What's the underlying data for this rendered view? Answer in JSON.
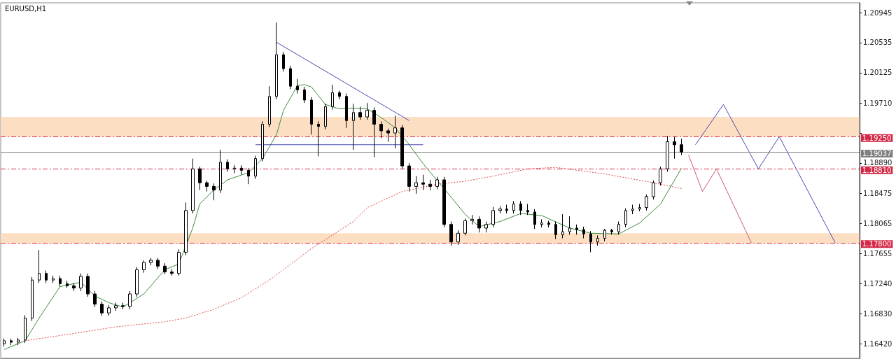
{
  "chart_data": {
    "type": "candlestick",
    "title": "EURUSD,H1",
    "color": "#000000",
    "tick_labels": "y",
    "grid": false,
    "marker": "none",
    "categories": [
      null,
      null,
      null,
      null,
      null,
      null,
      null,
      null,
      null,
      null,
      null,
      null,
      null,
      null,
      null,
      null,
      null,
      null,
      null,
      null,
      null,
      null,
      null,
      null,
      null,
      null,
      null,
      null,
      null,
      null,
      null,
      null,
      null,
      null,
      null,
      null,
      null,
      null,
      null,
      null,
      null,
      null,
      null,
      null,
      null,
      null,
      null,
      null,
      null,
      null,
      null,
      null,
      null,
      null,
      null,
      null,
      null,
      null,
      null,
      null,
      null,
      null,
      null,
      null,
      null,
      null,
      null,
      null,
      null,
      null,
      null,
      null,
      null,
      null,
      null,
      null,
      null,
      null,
      null,
      null,
      null,
      null,
      null,
      null,
      null,
      null,
      null,
      null,
      null,
      null,
      null,
      null,
      null,
      null,
      null,
      null,
      null,
      null,
      null,
      null,
      null,
      null,
      null,
      null,
      null,
      null,
      null,
      null,
      null,
      null,
      null,
      null,
      null,
      null,
      null,
      null,
      null,
      null,
      null,
      null,
      null,
      null,
      null
    ],
    "ylim": [
      1.1622,
      1.2108
    ],
    "yticks": [
      {
        "value": 1.1642,
        "label": "1.16420"
      },
      {
        "value": 1.1683,
        "label": "1.16830"
      },
      {
        "value": 1.1724,
        "label": "1.17240"
      },
      {
        "value": 1.17655,
        "label": "1.17655"
      },
      {
        "value": 1.18065,
        "label": "1.18065"
      },
      {
        "value": 1.18475,
        "label": "1.18475"
      },
      {
        "value": 1.1889,
        "label": "1.18890"
      },
      {
        "value": 1.193,
        "label": null
      },
      {
        "value": 1.1971,
        "label": "1.19710"
      },
      {
        "value": 1.20125,
        "label": "1.20125"
      },
      {
        "value": 1.20535,
        "label": "1.20535"
      },
      {
        "value": 1.20945,
        "label": "1.20945"
      }
    ],
    "ohlc": [
      [
        1.1642,
        1.1649,
        1.1638,
        1.1646
      ],
      [
        1.1646,
        1.1649,
        1.164,
        1.1644
      ],
      [
        1.1644,
        1.165,
        1.164,
        1.1647
      ],
      [
        1.1647,
        1.1681,
        1.1643,
        1.1677
      ],
      [
        1.1677,
        1.1733,
        1.1673,
        1.1729
      ],
      [
        1.1729,
        1.177,
        1.1725,
        1.1738
      ],
      [
        1.1738,
        1.1742,
        1.1725,
        1.1729
      ],
      [
        1.1729,
        1.1735,
        1.1725,
        1.1731
      ],
      [
        1.1731,
        1.1735,
        1.172,
        1.1724
      ],
      [
        1.1724,
        1.1728,
        1.1718,
        1.1721
      ],
      [
        1.1721,
        1.1725,
        1.1714,
        1.1718
      ],
      [
        1.1718,
        1.1738,
        1.1714,
        1.1734
      ],
      [
        1.1734,
        1.1738,
        1.1706,
        1.171
      ],
      [
        1.171,
        1.1714,
        1.1692,
        1.1696
      ],
      [
        1.1696,
        1.17,
        1.168,
        1.1684
      ],
      [
        1.1684,
        1.1695,
        1.168,
        1.1691
      ],
      [
        1.1691,
        1.1698,
        1.1687,
        1.1694
      ],
      [
        1.1694,
        1.1698,
        1.1689,
        1.1693
      ],
      [
        1.1693,
        1.1714,
        1.1689,
        1.171
      ],
      [
        1.171,
        1.1747,
        1.1706,
        1.1743
      ],
      [
        1.1743,
        1.1756,
        1.1739,
        1.1753
      ],
      [
        1.1753,
        1.1759,
        1.1749,
        1.1756
      ],
      [
        1.1756,
        1.1759,
        1.1744,
        1.1748
      ],
      [
        1.1748,
        1.1752,
        1.1737,
        1.174
      ],
      [
        1.174,
        1.1744,
        1.1735,
        1.1738
      ],
      [
        1.1738,
        1.1771,
        1.1735,
        1.1767
      ],
      [
        1.1767,
        1.1835,
        1.1763,
        1.1824
      ],
      [
        1.1824,
        1.1895,
        1.182,
        1.1881
      ],
      [
        1.1881,
        1.1884,
        1.1852,
        1.1862
      ],
      [
        1.1862,
        1.1865,
        1.185,
        1.1857
      ],
      [
        1.1857,
        1.1861,
        1.1838,
        1.1852
      ],
      [
        1.1852,
        1.1907,
        1.1848,
        1.189
      ],
      [
        1.189,
        1.1894,
        1.1877,
        1.1881
      ],
      [
        1.1881,
        1.1886,
        1.1875,
        1.1882
      ],
      [
        1.1882,
        1.1886,
        1.1873,
        1.1879
      ],
      [
        1.1879,
        1.1882,
        1.186,
        1.1871
      ],
      [
        1.1871,
        1.1899,
        1.1867,
        1.1895
      ],
      [
        1.1895,
        1.1946,
        1.1891,
        1.1942
      ],
      [
        1.1942,
        1.1994,
        1.1938,
        1.198
      ],
      [
        1.198,
        1.2081,
        1.1976,
        1.2037
      ],
      [
        1.2037,
        1.2041,
        1.2014,
        1.2018
      ],
      [
        1.2018,
        1.2022,
        1.199,
        1.1994
      ],
      [
        1.1994,
        1.2004,
        1.1984,
        1.1989
      ],
      [
        1.1989,
        1.1993,
        1.1971,
        1.1975
      ],
      [
        1.1975,
        1.1979,
        1.1928,
        1.1942
      ],
      [
        1.1942,
        1.1946,
        1.1898,
        1.1939
      ],
      [
        1.1939,
        1.197,
        1.1935,
        1.1966
      ],
      [
        1.1966,
        1.1996,
        1.1962,
        1.1985
      ],
      [
        1.1985,
        1.1988,
        1.1976,
        1.198
      ],
      [
        1.198,
        1.1984,
        1.1937,
        1.1947
      ],
      [
        1.1947,
        1.197,
        1.1907,
        1.1958
      ],
      [
        1.1958,
        1.1966,
        1.1948,
        1.1952
      ],
      [
        1.1952,
        1.1971,
        1.1948,
        1.1961
      ],
      [
        1.1961,
        1.1965,
        1.1897,
        1.1942
      ],
      [
        1.1942,
        1.1946,
        1.1923,
        1.1933
      ],
      [
        1.1933,
        1.1936,
        1.1918,
        1.193
      ],
      [
        1.193,
        1.1954,
        1.1909,
        1.1937
      ],
      [
        1.1937,
        1.1941,
        1.1881,
        1.1885
      ],
      [
        1.1885,
        1.1889,
        1.185,
        1.1857
      ],
      [
        1.1857,
        1.1871,
        1.1847,
        1.1862
      ],
      [
        1.1862,
        1.1873,
        1.1852,
        1.186
      ],
      [
        1.186,
        1.1866,
        1.1852,
        1.1857
      ],
      [
        1.1857,
        1.187,
        1.1853,
        1.1866
      ],
      [
        1.1866,
        1.187,
        1.1801,
        1.1805
      ],
      [
        1.1805,
        1.1809,
        1.1776,
        1.1781
      ],
      [
        1.1781,
        1.1797,
        1.1777,
        1.1793
      ],
      [
        1.1793,
        1.1813,
        1.179,
        1.181
      ],
      [
        1.181,
        1.1818,
        1.1805,
        1.1812
      ],
      [
        1.1812,
        1.1816,
        1.1794,
        1.18
      ],
      [
        1.18,
        1.1809,
        1.1794,
        1.1805
      ],
      [
        1.1805,
        1.1829,
        1.1801,
        1.1824
      ],
      [
        1.1824,
        1.183,
        1.182,
        1.1826
      ],
      [
        1.1826,
        1.1832,
        1.182,
        1.1824
      ],
      [
        1.1824,
        1.1837,
        1.182,
        1.1833
      ],
      [
        1.1833,
        1.1837,
        1.1818,
        1.1824
      ],
      [
        1.1824,
        1.1833,
        1.1818,
        1.1822
      ],
      [
        1.1822,
        1.1826,
        1.1799,
        1.1805
      ],
      [
        1.1805,
        1.1812,
        1.1801,
        1.1807
      ],
      [
        1.1807,
        1.181,
        1.1801,
        1.1805
      ],
      [
        1.1805,
        1.1809,
        1.1785,
        1.1791
      ],
      [
        1.1791,
        1.1819,
        1.1786,
        1.1795
      ],
      [
        1.1795,
        1.1816,
        1.1791,
        1.18
      ],
      [
        1.18,
        1.1805,
        1.1791,
        1.1798
      ],
      [
        1.1798,
        1.1802,
        1.1786,
        1.1792
      ],
      [
        1.1792,
        1.1796,
        1.1767,
        1.1781
      ],
      [
        1.1781,
        1.179,
        1.1776,
        1.1786
      ],
      [
        1.1786,
        1.1799,
        1.1782,
        1.1797
      ],
      [
        1.1797,
        1.1799,
        1.1791,
        1.1795
      ],
      [
        1.1795,
        1.1809,
        1.1791,
        1.1805
      ],
      [
        1.1805,
        1.1827,
        1.1801,
        1.1824
      ],
      [
        1.1824,
        1.1832,
        1.1819,
        1.1826
      ],
      [
        1.1826,
        1.1833,
        1.1823,
        1.1828
      ],
      [
        1.1828,
        1.1846,
        1.1824,
        1.1843
      ],
      [
        1.1843,
        1.1865,
        1.1839,
        1.1862
      ],
      [
        1.1862,
        1.1884,
        1.1858,
        1.1881
      ],
      [
        1.1881,
        1.1926,
        1.1877,
        1.1918
      ],
      [
        1.1918,
        1.1925,
        1.1895,
        1.1914
      ],
      [
        1.1914,
        1.1922,
        1.19,
        1.1904
      ],
      null,
      null,
      null,
      null,
      null,
      null,
      null,
      null,
      null,
      null,
      null,
      null,
      null,
      null,
      null,
      null,
      null,
      null,
      null,
      null,
      null,
      null,
      null,
      null,
      null
    ],
    "series": [
      {
        "type": "line",
        "color": "#3c8c3c",
        "line_style": "solid",
        "values": [
          1.1634,
          null,
          null,
          1.1646,
          null,
          1.1677,
          null,
          null,
          1.172,
          null,
          null,
          1.1726,
          null,
          1.1707,
          null,
          1.1698,
          null,
          1.1692,
          null,
          null,
          1.171,
          null,
          null,
          1.1743,
          null,
          1.1751,
          null,
          1.18,
          1.1833,
          null,
          1.1852,
          null,
          1.1866,
          null,
          null,
          1.1876,
          null,
          1.1895,
          null,
          1.1928,
          1.1961,
          null,
          1.1995,
          1.1996,
          1.1993,
          null,
          1.1969,
          null,
          1.1963,
          null,
          1.1964,
          null,
          1.1963,
          null,
          1.1951,
          null,
          1.1937,
          null,
          1.1914,
          null,
          1.1888,
          null,
          1.1865,
          1.1854,
          null,
          null,
          1.1819,
          null,
          1.1802,
          null,
          null,
          1.1809,
          null,
          null,
          1.182,
          null,
          null,
          1.1817,
          null,
          null,
          null,
          1.18,
          null,
          null,
          1.1793,
          null,
          null,
          null,
          1.1792,
          null,
          null,
          1.1807,
          null,
          null,
          1.1833,
          null,
          null,
          1.1882,
          null,
          null,
          null,
          null,
          null,
          null,
          null,
          null,
          null,
          null,
          null,
          null,
          null,
          null,
          null,
          null,
          null,
          null,
          null,
          null,
          null,
          null,
          null,
          null,
          null
        ]
      },
      {
        "type": "line",
        "color": "#e04848",
        "line_style": "dotted",
        "values": [
          null,
          null,
          null,
          1.1646,
          null,
          null,
          null,
          null,
          null,
          null,
          1.1656,
          null,
          null,
          null,
          null,
          null,
          1.1665,
          null,
          null,
          null,
          null,
          null,
          null,
          1.1672,
          null,
          null,
          1.1677,
          null,
          null,
          null,
          1.1689,
          null,
          null,
          null,
          1.1705,
          null,
          null,
          null,
          1.1729,
          null,
          null,
          null,
          null,
          null,
          1.1772,
          null,
          null,
          null,
          null,
          null,
          1.1809,
          null,
          1.1828,
          null,
          null,
          null,
          null,
          1.185,
          null,
          null,
          null,
          null,
          1.186,
          null,
          null,
          null,
          1.1864,
          null,
          null,
          null,
          1.1871,
          null,
          null,
          null,
          null,
          1.1881,
          null,
          null,
          null,
          1.1883,
          null,
          null,
          null,
          null,
          null,
          null,
          1.1874,
          null,
          null,
          null,
          null,
          null,
          null,
          1.1862,
          null,
          null,
          null,
          1.1854,
          null,
          null,
          null,
          null,
          null,
          null,
          null,
          null,
          null,
          null,
          null,
          null,
          null,
          null,
          null,
          null,
          null,
          null,
          null,
          null,
          null,
          null,
          null,
          null,
          null
        ]
      },
      {
        "type": "line",
        "color": "#4848b0",
        "line_style": "solid",
        "values": [
          null,
          null,
          null,
          null,
          null,
          null,
          null,
          null,
          null,
          null,
          null,
          null,
          null,
          null,
          null,
          null,
          null,
          null,
          null,
          null,
          null,
          null,
          null,
          null,
          null,
          null,
          null,
          null,
          null,
          null,
          null,
          null,
          null,
          null,
          null,
          null,
          null,
          null,
          null,
          1.2054,
          null,
          null,
          null,
          null,
          null,
          null,
          null,
          null,
          null,
          null,
          null,
          null,
          null,
          null,
          null,
          null,
          null,
          null,
          1.1947,
          null,
          null,
          null,
          null,
          null,
          null,
          null,
          null,
          null,
          null,
          null,
          null,
          null,
          null,
          null,
          null,
          null,
          null,
          null,
          null,
          null,
          null,
          null,
          null,
          null,
          null,
          null,
          null,
          null,
          null,
          null,
          null,
          null,
          null,
          null,
          null,
          null,
          null,
          null,
          null,
          null,
          null,
          null,
          null,
          null,
          null,
          null,
          null,
          null,
          null,
          null,
          null,
          null,
          null,
          null,
          null,
          null,
          null,
          null,
          null,
          null,
          null,
          null,
          null
        ]
      },
      {
        "type": "line",
        "color": "#4848b0",
        "line_style": "solid",
        "values": [
          null,
          null,
          null,
          null,
          null,
          null,
          null,
          null,
          null,
          null,
          null,
          null,
          null,
          null,
          null,
          null,
          null,
          null,
          null,
          null,
          null,
          null,
          null,
          null,
          null,
          null,
          null,
          null,
          null,
          null,
          null,
          null,
          null,
          null,
          null,
          null,
          1.1914,
          null,
          null,
          null,
          null,
          null,
          null,
          null,
          null,
          null,
          null,
          null,
          null,
          null,
          null,
          null,
          null,
          null,
          null,
          null,
          null,
          null,
          null,
          null,
          1.1914,
          null,
          null,
          null,
          null,
          null,
          null,
          null,
          null,
          null,
          null,
          null,
          null,
          null,
          null,
          null,
          null,
          null,
          null,
          null,
          null,
          null,
          null,
          null,
          null,
          null,
          null,
          null,
          null,
          null,
          null,
          null,
          null,
          null,
          null,
          null,
          null,
          null,
          null,
          null,
          null,
          null,
          null,
          null,
          null,
          null,
          null,
          null,
          null,
          null,
          null,
          null,
          null,
          null,
          null,
          null,
          null,
          null,
          null,
          null,
          null,
          null,
          null
        ]
      },
      {
        "type": "line",
        "color": "#4848b0",
        "line_style": "solid",
        "values": [
          null,
          null,
          null,
          null,
          null,
          null,
          null,
          null,
          null,
          null,
          null,
          null,
          null,
          null,
          null,
          null,
          null,
          null,
          null,
          null,
          null,
          null,
          null,
          null,
          null,
          null,
          null,
          null,
          null,
          null,
          null,
          null,
          null,
          null,
          null,
          null,
          null,
          null,
          null,
          null,
          null,
          null,
          null,
          null,
          null,
          null,
          null,
          null,
          null,
          null,
          null,
          null,
          null,
          null,
          null,
          null,
          null,
          null,
          null,
          null,
          null,
          null,
          null,
          null,
          null,
          null,
          null,
          null,
          null,
          null,
          null,
          null,
          null,
          null,
          null,
          null,
          null,
          null,
          null,
          null,
          null,
          null,
          null,
          null,
          null,
          null,
          null,
          null,
          null,
          null,
          null,
          null,
          null,
          null,
          null,
          null,
          null,
          null,
          null,
          1.1914,
          null,
          null,
          null,
          1.1969,
          null,
          null,
          null,
          null,
          1.1881,
          null,
          null,
          1.1925,
          null,
          null,
          null,
          null,
          null,
          null,
          null,
          1.178,
          null,
          null,
          null
        ]
      },
      {
        "type": "line",
        "color": "#c85a7a",
        "line_style": "solid",
        "values": [
          null,
          null,
          null,
          null,
          null,
          null,
          null,
          null,
          null,
          null,
          null,
          null,
          null,
          null,
          null,
          null,
          null,
          null,
          null,
          null,
          null,
          null,
          null,
          null,
          null,
          null,
          null,
          null,
          null,
          null,
          null,
          null,
          null,
          null,
          null,
          null,
          null,
          null,
          null,
          null,
          null,
          null,
          null,
          null,
          null,
          null,
          null,
          null,
          null,
          null,
          null,
          null,
          null,
          null,
          null,
          null,
          null,
          null,
          null,
          null,
          null,
          null,
          null,
          null,
          null,
          null,
          null,
          null,
          null,
          null,
          null,
          null,
          null,
          null,
          null,
          null,
          null,
          null,
          null,
          null,
          null,
          null,
          null,
          null,
          null,
          null,
          null,
          null,
          null,
          null,
          null,
          null,
          null,
          null,
          null,
          null,
          null,
          null,
          1.19,
          null,
          1.185,
          null,
          1.1881,
          null,
          null,
          null,
          null,
          1.178,
          null,
          null,
          null,
          null,
          null,
          null,
          null,
          null,
          null,
          null,
          null,
          null,
          null,
          null,
          null
        ]
      }
    ],
    "ref_lines": [
      {
        "axis": "y",
        "value": 1.1925,
        "label": "1.19250",
        "color": "#d42a48",
        "line_style": "dashed"
      },
      {
        "axis": "y",
        "value": 1.19037,
        "label": "1.19037",
        "color": "#808080",
        "line_style": "solid"
      },
      {
        "axis": "y",
        "value": 1.1881,
        "label": "1.18810",
        "color": "#d42a48",
        "line_style": "dashed"
      },
      {
        "axis": "y",
        "value": 1.178,
        "label": "1.17800",
        "color": "#d42a48",
        "line_style": "dashed"
      }
    ],
    "bands": [
      {
        "axis": "y",
        "from": 1.1925,
        "to": 1.1952,
        "color": "#fcdcbc"
      },
      {
        "axis": "y",
        "from": 1.1779,
        "to": 1.1793,
        "color": "#fcdcbc"
      }
    ]
  }
}
